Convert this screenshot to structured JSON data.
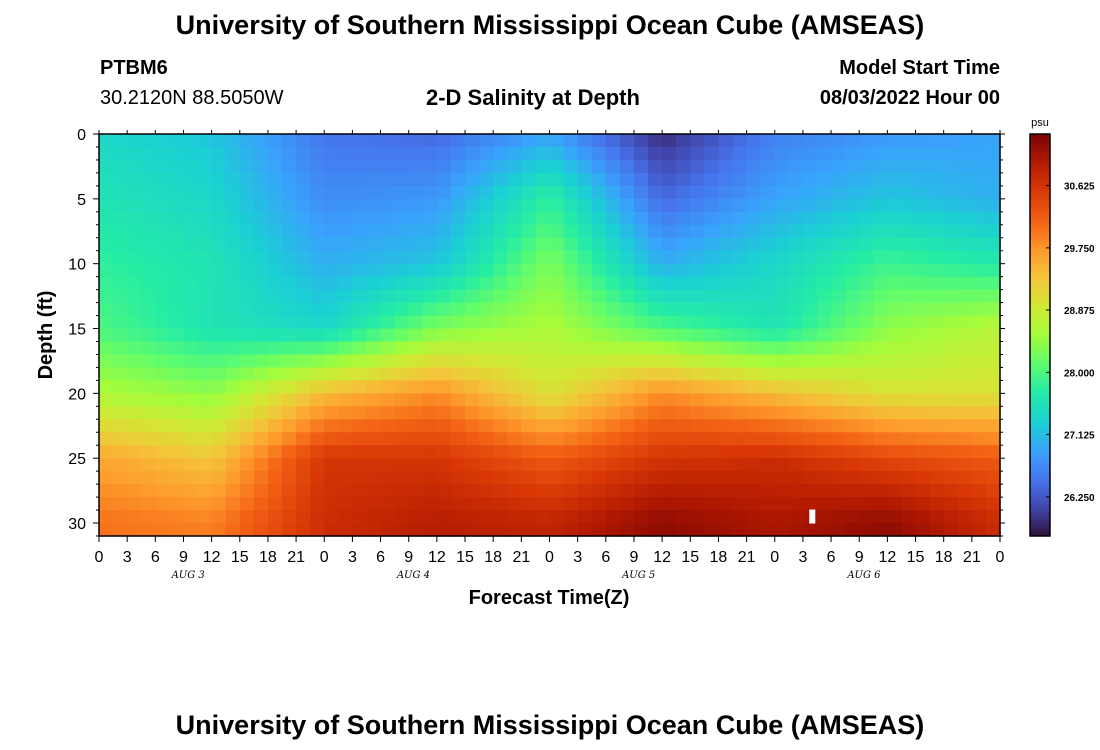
{
  "header": {
    "title": "University of Southern Mississippi Ocean Cube (AMSEAS)",
    "station_id": "PTBM6",
    "station_coords": "30.2120N  88.5050W",
    "model_start_label": "Model Start Time",
    "model_start_value": "08/03/2022 Hour 00"
  },
  "footer": {
    "title": "University of Southern Mississippi Ocean Cube (AMSEAS)"
  },
  "chart_data": {
    "type": "heatmap",
    "title": "2-D Salinity at Depth",
    "xlabel": "Forecast Time(Z)",
    "ylabel": "Depth (ft)",
    "x_hours": [
      0,
      12,
      24,
      36,
      48,
      60,
      72,
      84,
      96
    ],
    "x_range_hours": [
      0,
      96
    ],
    "x_tick_labels": [
      "0",
      "3",
      "6",
      "9",
      "12",
      "15",
      "18",
      "21",
      "0",
      "3",
      "6",
      "9",
      "12",
      "15",
      "18",
      "21",
      "0",
      "3",
      "6",
      "9",
      "12",
      "15",
      "18",
      "21",
      "0",
      "3",
      "6",
      "9",
      "12",
      "15",
      "18",
      "21",
      "0"
    ],
    "day_labels": [
      "AUG 3",
      "AUG 4",
      "AUG 5",
      "AUG 6"
    ],
    "y_depth_ft": [
      0,
      5,
      10,
      15,
      20,
      25,
      30
    ],
    "y_range_ft": [
      0,
      31
    ],
    "y_tick_labels": [
      "0",
      "5",
      "10",
      "15",
      "20",
      "25",
      "30"
    ],
    "colorbar": {
      "unit": "psu",
      "range": [
        25.7,
        31.35
      ],
      "tick_values": [
        26.25,
        27.125,
        28.0,
        28.875,
        29.75,
        30.625
      ],
      "tick_labels": [
        "26.250",
        "27.125",
        "28.000",
        "28.875",
        "29.750",
        "30.625"
      ]
    },
    "values_psu": [
      [
        27.4,
        27.2,
        26.5,
        26.4,
        26.9,
        25.9,
        26.6,
        26.8,
        26.9
      ],
      [
        27.6,
        27.4,
        26.7,
        26.8,
        27.8,
        26.4,
        26.9,
        27.2,
        27.0
      ],
      [
        27.8,
        27.6,
        27.0,
        27.2,
        28.3,
        27.0,
        27.4,
        27.9,
        27.7
      ],
      [
        28.0,
        27.6,
        27.4,
        28.3,
        28.6,
        28.0,
        27.6,
        28.4,
        28.7
      ],
      [
        28.6,
        28.4,
        29.4,
        29.8,
        29.0,
        29.8,
        29.4,
        29.0,
        29.0
      ],
      [
        29.6,
        29.3,
        30.6,
        30.6,
        30.2,
        30.6,
        30.7,
        30.4,
        30.2
      ],
      [
        30.0,
        29.9,
        30.7,
        30.9,
        30.8,
        31.2,
        31.0,
        31.2,
        30.7
      ]
    ],
    "marker": {
      "hour": 76,
      "depth_ft": 29.5
    }
  }
}
